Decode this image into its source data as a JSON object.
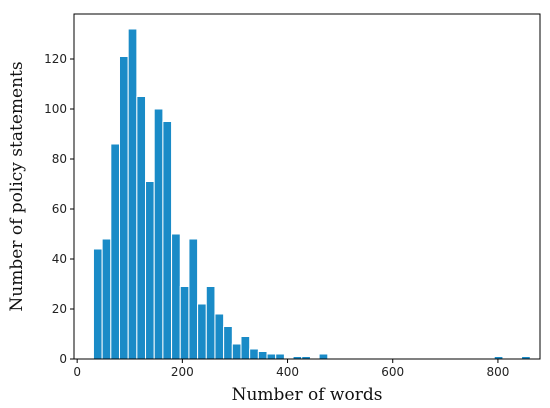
{
  "chart_data": {
    "type": "bar",
    "xlabel": "Number of words",
    "ylabel": "Number of policy statements",
    "xlim": [
      -6,
      880
    ],
    "ylim": [
      0,
      138
    ],
    "xticks": [
      0,
      200,
      400,
      600,
      800
    ],
    "yticks": [
      0,
      20,
      40,
      60,
      80,
      100,
      120
    ],
    "bin_width": 16.5,
    "bar_color": "#1a8bc7",
    "bar_edge_color": "#ffffff",
    "grid": false,
    "bins": [
      {
        "x": 31,
        "value": 44
      },
      {
        "x": 47.5,
        "value": 48
      },
      {
        "x": 64,
        "value": 86
      },
      {
        "x": 80.5,
        "value": 121
      },
      {
        "x": 97,
        "value": 132
      },
      {
        "x": 113.5,
        "value": 105
      },
      {
        "x": 130,
        "value": 71
      },
      {
        "x": 146.5,
        "value": 100
      },
      {
        "x": 163,
        "value": 95
      },
      {
        "x": 179.5,
        "value": 50
      },
      {
        "x": 196,
        "value": 29
      },
      {
        "x": 212.5,
        "value": 48
      },
      {
        "x": 229,
        "value": 22
      },
      {
        "x": 245.5,
        "value": 29
      },
      {
        "x": 262,
        "value": 18
      },
      {
        "x": 278.5,
        "value": 13
      },
      {
        "x": 295,
        "value": 6
      },
      {
        "x": 311.5,
        "value": 9
      },
      {
        "x": 328,
        "value": 4
      },
      {
        "x": 344.5,
        "value": 3
      },
      {
        "x": 361,
        "value": 2
      },
      {
        "x": 377.5,
        "value": 2
      },
      {
        "x": 410.5,
        "value": 1
      },
      {
        "x": 427,
        "value": 1
      },
      {
        "x": 460,
        "value": 2
      },
      {
        "x": 793,
        "value": 1
      },
      {
        "x": 845,
        "value": 1
      }
    ]
  }
}
